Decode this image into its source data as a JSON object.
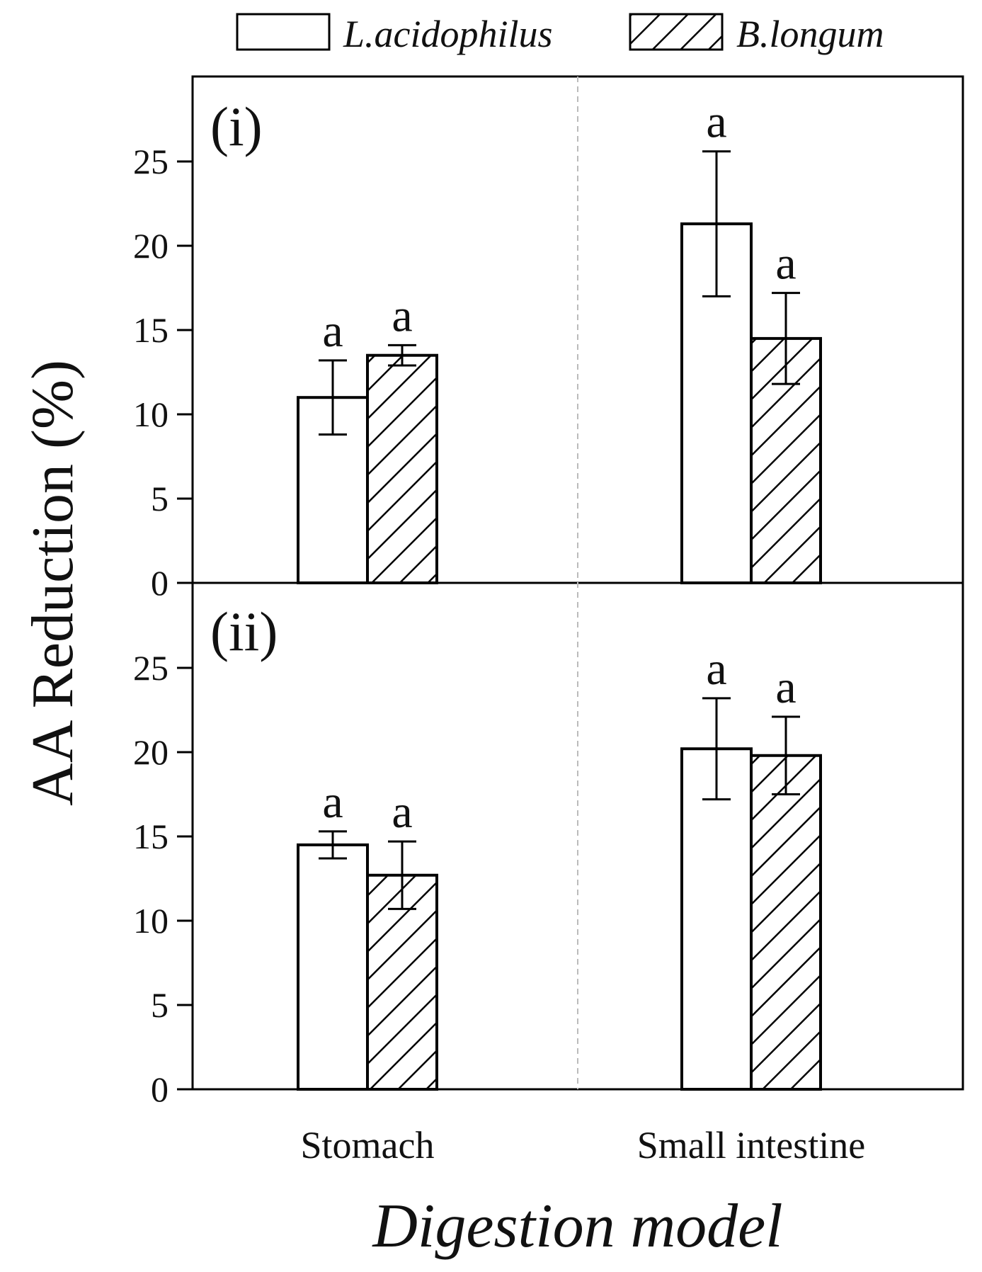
{
  "chart_data": {
    "type": "bar",
    "ylabel": "AA Reduction (%)",
    "xlabel": "Digestion model",
    "categories": [
      "Stomach",
      "Small intestine"
    ],
    "legend": {
      "position": "top",
      "entries": [
        {
          "name": "L.acidophilus",
          "pattern": "open"
        },
        {
          "name": "B.longum",
          "pattern": "hatched"
        }
      ]
    },
    "yticks": [
      "0",
      "5",
      "10",
      "15",
      "20",
      "25"
    ],
    "ylim": [
      0,
      30
    ],
    "panels": [
      {
        "label": "(i)",
        "series": [
          {
            "name": "L.acidophilus",
            "values": [
              11.0,
              21.3
            ],
            "errors": [
              2.2,
              4.3
            ],
            "letters": [
              "a",
              "a"
            ]
          },
          {
            "name": "B.longum",
            "values": [
              13.5,
              14.5
            ],
            "errors": [
              0.6,
              2.7
            ],
            "letters": [
              "a",
              "a"
            ]
          }
        ]
      },
      {
        "label": "(ii)",
        "series": [
          {
            "name": "L.acidophilus",
            "values": [
              14.5,
              20.2
            ],
            "errors": [
              0.8,
              3.0
            ],
            "letters": [
              "a",
              "a"
            ]
          },
          {
            "name": "B.longum",
            "values": [
              12.7,
              19.8
            ],
            "errors": [
              2.0,
              2.3
            ],
            "letters": [
              "a",
              "a"
            ]
          }
        ]
      }
    ]
  }
}
